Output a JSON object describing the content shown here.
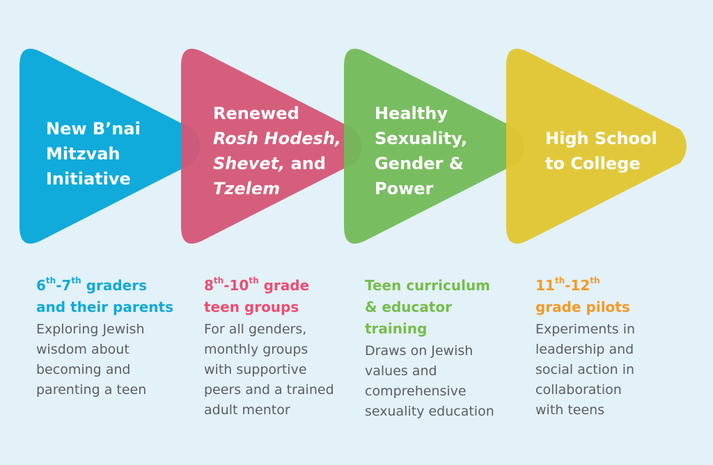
{
  "colors": {
    "background": "#e3f1f8",
    "blue": "#12b5e2",
    "pink": "#f05b7a",
    "green": "#82c55c",
    "yellow": "#fdd232",
    "blue_text": "#12a9d8",
    "pink_text": "#ee4d72",
    "green_text": "#76bd4c",
    "orange_text": "#f39a28",
    "body_text": "#5b5e62"
  },
  "stages": [
    {
      "label_lines": [
        "New B’nai",
        "Mitzvah",
        "Initiative"
      ],
      "audience": {
        "line1_a": "6",
        "line1_a_sup": "th",
        "line1_b": "-7",
        "line1_b_sup": "th",
        "line1_c": " graders",
        "line2": "and their parents"
      },
      "description_lines": [
        "Exploring Jewish",
        "wisdom about",
        "becoming and",
        "parenting a teen"
      ]
    },
    {
      "label_line1": "Renewed",
      "label_line2": "Rosh Hodesh,",
      "label_line3_a": "Shevet,",
      "label_line3_b": " and",
      "label_line4": "Tzelem",
      "audience": {
        "line1_a": "8",
        "line1_a_sup": "th",
        "line1_b": "-10",
        "line1_b_sup": "th",
        "line1_c": " grade",
        "line2": "teen groups"
      },
      "description_lines": [
        "For all genders,",
        "monthly groups",
        "with supportive",
        "peers and a trained",
        "adult mentor"
      ]
    },
    {
      "label_lines": [
        "Healthy",
        "Sexuality,",
        "Gender &",
        "Power"
      ],
      "audience_lines": [
        "Teen curriculum",
        "& educator",
        "training"
      ],
      "description_lines": [
        "Draws on Jewish",
        "values and",
        "comprehensive",
        "sexuality education"
      ]
    },
    {
      "label_lines": [
        "High School",
        "to College"
      ],
      "audience": {
        "line1_a": "11",
        "line1_a_sup": "th",
        "line1_b": "-12",
        "line1_b_sup": "th",
        "line2": "grade pilots"
      },
      "description_lines": [
        "Experiments in",
        "leadership and",
        "social action in",
        "collaboration",
        "with teens"
      ]
    }
  ]
}
